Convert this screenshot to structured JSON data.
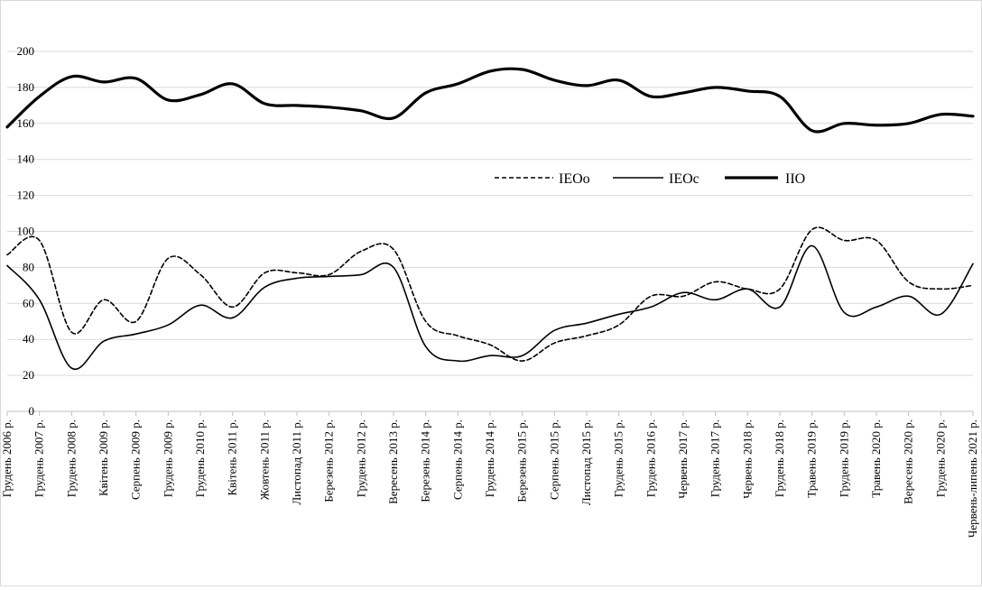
{
  "chart_data": {
    "type": "line",
    "title": "",
    "xlabel": "",
    "ylabel": "",
    "ylim": [
      0,
      200
    ],
    "yticks": [
      0,
      20,
      40,
      60,
      80,
      100,
      120,
      140,
      160,
      180,
      200
    ],
    "grid": "horizontal",
    "legend_position": "center-right",
    "categories": [
      "Грудень 2006 р.",
      "Грудень 2007 р.",
      "Грудень 2008 р.",
      "Квітень 2009 р.",
      "Серпень 2009 р.",
      "Грудень 2009 р.",
      "Грудень 2010 р.",
      "Квітень 2011 р.",
      "Жовтень 2011 р.",
      "Листопад 2011 р.",
      "Березень 2012 р.",
      "Грудень 2012 р.",
      "Вересень 2013 р.",
      "Березень 2014 р.",
      "Серпень 2014 р.",
      "Грудень 2014 р.",
      "Березень 2015 р.",
      "Серпень 2015 р.",
      "Листопад 2015 р.",
      "Грудень 2015 р.",
      "Грудень 2016 р.",
      "Червень 2017 р.",
      "Грудень 2017 р.",
      "Червень 2018 р.",
      "Грудень 2018 р.",
      "Травень 2019 р.",
      "Грудень 2019 р.",
      "Травень 2020 р.",
      "Вересень 2020 р.",
      "Грудень  2020 р.",
      "Червень-липень 2021 р."
    ],
    "series": [
      {
        "name": "IEOo",
        "style": "dashed",
        "color": "#000000",
        "values": [
          87,
          95,
          44,
          62,
          50,
          85,
          76,
          58,
          77,
          77,
          76,
          89,
          90,
          50,
          42,
          37,
          28,
          38,
          42,
          48,
          64,
          64,
          72,
          68,
          68,
          101,
          95,
          95,
          72,
          68,
          70
        ]
      },
      {
        "name": "IEOc",
        "style": "thin",
        "color": "#000000",
        "values": [
          81,
          62,
          24,
          39,
          43,
          48,
          59,
          52,
          69,
          74,
          75,
          76,
          80,
          36,
          28,
          31,
          31,
          45,
          49,
          54,
          58,
          66,
          62,
          68,
          58,
          92,
          55,
          58,
          64,
          54,
          82
        ]
      },
      {
        "name": "IIO",
        "style": "thick",
        "color": "#000000",
        "values": [
          158,
          175,
          186,
          183,
          185,
          173,
          176,
          182,
          171,
          170,
          169,
          167,
          163,
          177,
          182,
          189,
          190,
          184,
          181,
          184,
          175,
          177,
          180,
          178,
          175,
          156,
          160,
          159,
          160,
          165,
          164
        ]
      }
    ]
  }
}
